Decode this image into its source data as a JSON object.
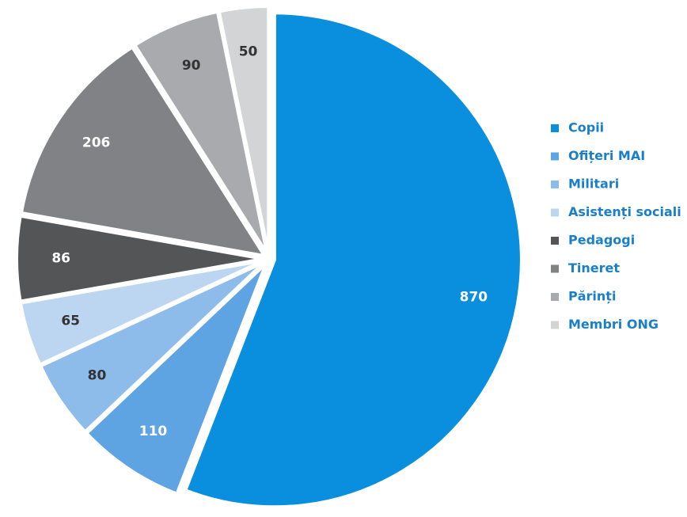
{
  "chart_data": {
    "type": "pie",
    "categories": [
      "Copii",
      "Ofițeri MAI",
      "Militari",
      "Asistenți sociali",
      "Pedagogi",
      "Tineret",
      "Părinți",
      "Membri ONG"
    ],
    "values": [
      870,
      110,
      80,
      65,
      86,
      206,
      90,
      50
    ],
    "colors": [
      "#0a8fde",
      "#5ea3e2",
      "#8dbcea",
      "#bcd6f2",
      "#545557",
      "#818285",
      "#a9aaad",
      "#d3d4d6"
    ],
    "legend": "right"
  }
}
